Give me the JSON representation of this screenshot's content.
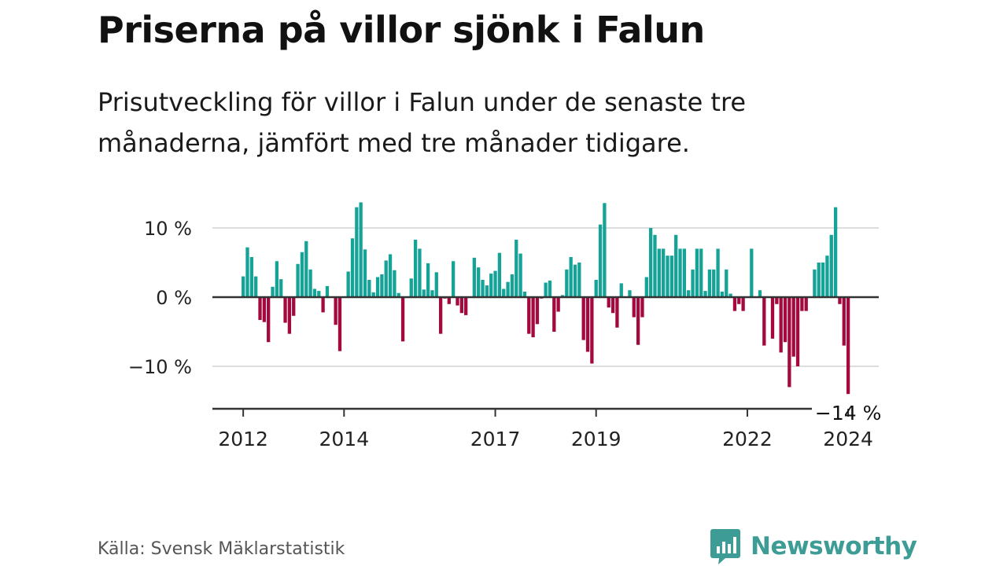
{
  "title": "Priserna på villor sjönk i Falun",
  "subtitle": "Prisutveckling för villor i Falun under de senaste tre månaderna, jämfört med tre månader tidigare.",
  "source": "Källa: Svensk Mäklarstatistik",
  "brand": "Newsworthy",
  "colors": {
    "positive": "#15a398",
    "negative": "#a3093e",
    "grid": "#dddddd",
    "zero_line": "#333333",
    "axis_text": "#222222",
    "brand": "#3d9c95"
  },
  "chart_data": {
    "type": "bar",
    "title": "Priserna på villor sjönk i Falun",
    "xlabel": "",
    "ylabel": "",
    "unit": "%",
    "ylim": [
      -16,
      14
    ],
    "yticks": [
      {
        "value": 10,
        "label": "10 %"
      },
      {
        "value": 0,
        "label": "0 %"
      },
      {
        "value": -10,
        "label": "−10 %"
      }
    ],
    "xticks": [
      {
        "index": 0,
        "label": "2012"
      },
      {
        "index": 24,
        "label": "2014"
      },
      {
        "index": 60,
        "label": "2017"
      },
      {
        "index": 84,
        "label": "2019"
      },
      {
        "index": 120,
        "label": "2022"
      },
      {
        "index": 144,
        "label": "2024"
      }
    ],
    "period": "monthly, 2011-12 to 2024-04",
    "last_value_label": "−14 %",
    "values": [
      3,
      7.2,
      5.8,
      3,
      -3.3,
      -3.6,
      -6.5,
      1.5,
      5.2,
      2.6,
      -3.7,
      -5.3,
      -2.7,
      4.8,
      6.5,
      8.1,
      4,
      1.2,
      0.9,
      -2.2,
      1.6,
      0,
      -4,
      -7.8,
      0,
      3.7,
      8.5,
      13,
      13.7,
      6.9,
      2.5,
      0.7,
      2.9,
      3.3,
      5.3,
      6.2,
      3.9,
      0.6,
      -6.4,
      0,
      2.7,
      8.3,
      7,
      1.1,
      4.9,
      1,
      3.6,
      -5.3,
      -0.2,
      -1,
      5.2,
      -1.2,
      -2.3,
      -2.6,
      0,
      5.7,
      4.3,
      2.5,
      1.7,
      3.4,
      3.8,
      6.4,
      1.2,
      2.2,
      3.3,
      8.3,
      6.3,
      0.8,
      -5.3,
      -5.8,
      -3.9,
      -0.2,
      2.1,
      2.4,
      -5,
      -2.1,
      0.3,
      4,
      5.8,
      4.7,
      5,
      -6.2,
      -7.9,
      -9.6,
      2.5,
      10.5,
      13.6,
      -1.5,
      -2.3,
      -4.4,
      2,
      0,
      1,
      -2.9,
      -6.9,
      -2.9,
      2.9,
      10,
      9,
      7,
      7,
      6,
      6,
      9,
      7,
      7,
      1,
      4,
      7,
      7,
      0.9,
      4,
      4,
      7,
      0.8,
      4,
      0.5,
      -2,
      -1,
      -2,
      0,
      7,
      0,
      1,
      -7,
      0,
      -6,
      -1,
      -8,
      -6.5,
      -13,
      -8.6,
      -10,
      -2,
      -2,
      0,
      4,
      5,
      5,
      6,
      9,
      13,
      -1,
      -7,
      -14
    ]
  }
}
